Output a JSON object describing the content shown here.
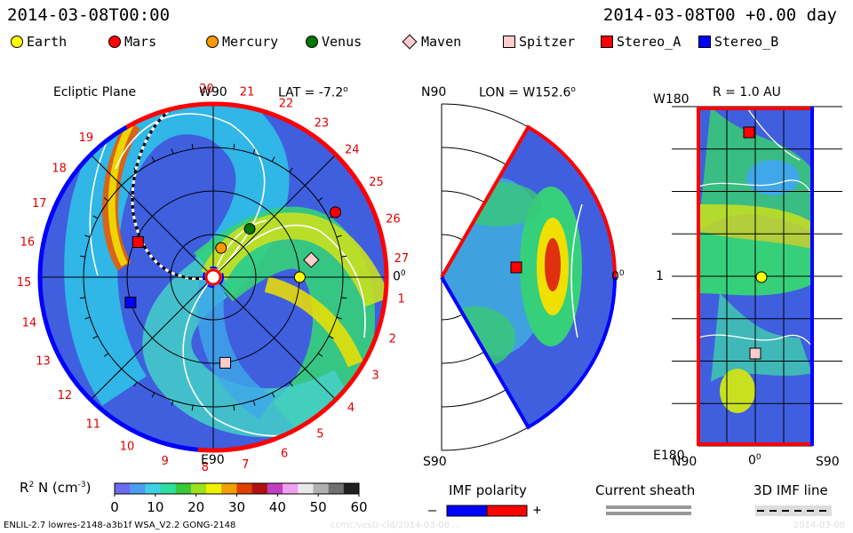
{
  "header": {
    "left_date": "2014-03-08T00:00",
    "right_date": "2014-03-08T00 +0.00 day"
  },
  "legend": [
    {
      "name": "Earth",
      "color": "#ffff00",
      "shape": "circle"
    },
    {
      "name": "Mars",
      "color": "#ff0000",
      "shape": "circle"
    },
    {
      "name": "Mercury",
      "color": "#ff9900",
      "shape": "circle"
    },
    {
      "name": "Venus",
      "color": "#007700",
      "shape": "circle"
    },
    {
      "name": "Maven",
      "color": "#ffcccc",
      "shape": "diamond"
    },
    {
      "name": "Spitzer",
      "color": "#ffcccc",
      "shape": "square"
    },
    {
      "name": "Stereo_A",
      "color": "#ff0000",
      "shape": "square"
    },
    {
      "name": "Stereo_B",
      "color": "#0000ff",
      "shape": "square"
    }
  ],
  "panels": {
    "ecliptic": {
      "title": "Ecliptic Plane",
      "lat_label": "LAT = -7.2",
      "lat_deg": "o",
      "top_label": "W90",
      "bottom_label": "E90",
      "right_label": "0",
      "right_deg": "0"
    },
    "meridional": {
      "top_label": "N90",
      "bottom_label": "S90",
      "lon_label": "LON = W152.6",
      "lon_deg": "o",
      "right_label": "0",
      "right_deg": "0"
    },
    "radial": {
      "title": "R = 1.0 AU",
      "top_left": "W180",
      "bottom_left": "E180",
      "mid_left": "1",
      "x_left": "N90",
      "x_mid": "0",
      "x_mid_deg": "0",
      "x_right": "S90"
    }
  },
  "dial_numbers": [
    "1",
    "2",
    "3",
    "4",
    "5",
    "6",
    "7",
    "8",
    "9",
    "10",
    "11",
    "12",
    "13",
    "14",
    "15",
    "16",
    "17",
    "18",
    "19",
    "20",
    "21",
    "22",
    "23",
    "24",
    "25",
    "26",
    "27"
  ],
  "colorbar": {
    "label": "R",
    "label_sup": "2",
    "label_rest": " N (cm",
    "label_exp": "-3",
    "label_close": ")",
    "ticks": [
      "0",
      "10",
      "20",
      "30",
      "40",
      "50",
      "60"
    ],
    "colors": [
      "#6b6bf0",
      "#4e9cf0",
      "#3fd0e6",
      "#2ee0a0",
      "#38c838",
      "#9ce01c",
      "#f0f000",
      "#f0a000",
      "#e04000",
      "#b01010",
      "#c040c0",
      "#f0a0f0",
      "#e8e8e8",
      "#b0b0b0",
      "#707070",
      "#202020"
    ]
  },
  "imf_polarity": {
    "title": "IMF polarity",
    "minus": "–",
    "plus": "+",
    "neg_color": "#0000ff",
    "pos_color": "#ff0000"
  },
  "current_sheath": {
    "title": "Current sheath"
  },
  "imf_line": {
    "title": "3D IMF line"
  },
  "footer": {
    "model": "ENLIL-2.7 lowres-2148-a3b1f WSA_V2.2 GONG-2148",
    "watermark": "ccmc/vestr-cld/2014-03-08 ...",
    "date": "2014-03-08"
  },
  "chart_data": [
    {
      "type": "heatmap",
      "title": "Ecliptic Plane",
      "subtitle": "LAT = -7.2",
      "value": "R^2 N (cm^-3)",
      "range": [
        0,
        60
      ],
      "bodies": [
        {
          "name": "Earth",
          "lon_deg": 0,
          "r_au": 1.0
        },
        {
          "name": "Mars",
          "lon_deg": 28,
          "r_au": 1.6
        },
        {
          "name": "Mercury",
          "lon_deg": 75,
          "r_au": 0.35
        },
        {
          "name": "Venus",
          "lon_deg": 53,
          "r_au": 0.7
        },
        {
          "name": "Maven",
          "lon_deg": 10,
          "r_au": 1.15
        },
        {
          "name": "Spitzer",
          "lon_deg": -82,
          "r_au": 1.0
        },
        {
          "name": "Stereo_A",
          "lon_deg": 155,
          "r_au": 0.96
        },
        {
          "name": "Stereo_B",
          "lon_deg": -163,
          "r_au": 1.0
        }
      ]
    },
    {
      "type": "heatmap",
      "title": "Meridional",
      "subtitle": "LON = W152.6"
    },
    {
      "type": "heatmap",
      "title": "R = 1.0 AU"
    }
  ]
}
